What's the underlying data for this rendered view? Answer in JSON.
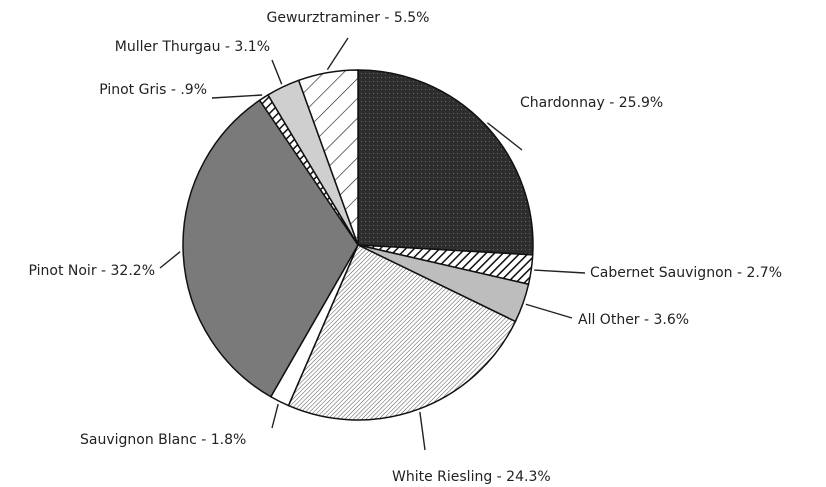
{
  "chart_data": {
    "type": "pie",
    "categories": [
      "Chardonnay - 25.9%",
      "Cabernet Sauvignon - 2.7%",
      "All Other - 3.6%",
      "White Riesling - 24.3%",
      "Sauvignon Blanc - 1.8%",
      "Pinot Noir - 32.2%",
      "Pinot Gris - .9%",
      "Muller Thurgau - 3.1%",
      "Gewurztraminer - 5.5%"
    ],
    "values": [
      25.9,
      2.7,
      3.6,
      24.3,
      1.8,
      32.2,
      0.9,
      3.1,
      5.5
    ],
    "colors": [
      "url(#p-dark)",
      "url(#p-hatch-bold)",
      "#bdbdbd",
      "url(#p-hatch-fine)",
      "#ffffff",
      "#7a7a7a",
      "url(#p-hatch-bold)",
      "#cfcfcf",
      "url(#p-hatch-wide)"
    ]
  }
}
